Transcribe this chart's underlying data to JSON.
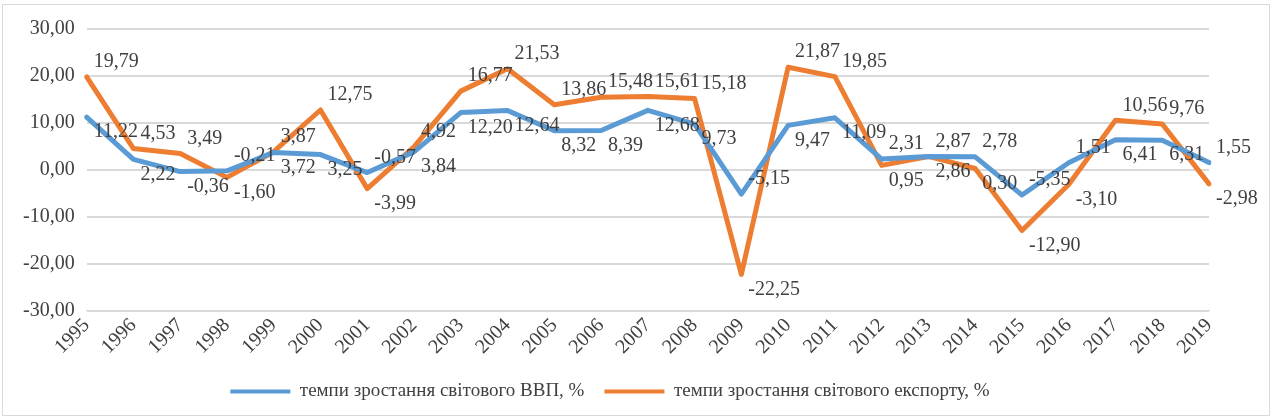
{
  "chart_data": {
    "type": "line",
    "categories": [
      "1995",
      "1996",
      "1997",
      "1998",
      "1999",
      "2000",
      "2001",
      "2002",
      "2003",
      "2004",
      "2005",
      "2006",
      "2007",
      "2008",
      "2009",
      "2010",
      "2011",
      "2012",
      "2013",
      "2014",
      "2015",
      "2016",
      "2017",
      "2018",
      "2019"
    ],
    "series": [
      {
        "name": "темпи зростання світового ВВП, %",
        "color": "#5b9bd5",
        "values": [
          11.22,
          2.22,
          -0.36,
          -0.21,
          3.72,
          3.25,
          -0.57,
          3.84,
          12.2,
          12.64,
          8.32,
          8.39,
          12.68,
          9.73,
          -5.15,
          9.47,
          11.09,
          2.31,
          2.87,
          2.78,
          -5.35,
          1.51,
          6.41,
          6.31,
          1.55
        ],
        "value_labels": [
          "11,22",
          "2,22",
          "-0,36",
          "-0,21",
          "3,72",
          "3,25",
          "-0,57",
          "3,84",
          "12,20",
          "12,64",
          "8,32",
          "8,39",
          "12,68",
          "9,73",
          "-5,15",
          "9,47",
          "11,09",
          "2,31",
          "2,87",
          "2,78",
          "-5,35",
          "1,51",
          "6,41",
          "6,31",
          "1,55"
        ]
      },
      {
        "name": "темпи зростання світового експорту, %",
        "color": "#ed7d31",
        "values": [
          19.79,
          4.53,
          3.49,
          -1.6,
          3.87,
          12.75,
          -3.99,
          4.92,
          16.77,
          21.53,
          13.86,
          15.48,
          15.61,
          15.18,
          -22.25,
          21.87,
          19.85,
          0.95,
          2.86,
          0.3,
          -12.9,
          -3.1,
          10.56,
          9.76,
          -2.98
        ],
        "value_labels": [
          "19,79",
          "4,53",
          "3,49",
          "-1,60",
          "3,87",
          "12,75",
          "-3,99",
          "4,92",
          "16,77",
          "21,53",
          "13,86",
          "15,48",
          "15,61",
          "15,18",
          "-22,25",
          "21,87",
          "19,85",
          "0,95",
          "2,86",
          "0,30",
          "-12,90",
          "-3,10",
          "10,56",
          "9,76",
          "-2,98"
        ]
      }
    ],
    "ylim": [
      -30,
      30
    ],
    "yticks": [
      {
        "value": -30,
        "label": "-30,00"
      },
      {
        "value": -20,
        "label": "-20,00"
      },
      {
        "value": -10,
        "label": "-10,00"
      },
      {
        "value": 0,
        "label": "0,00"
      },
      {
        "value": 10,
        "label": "10,00"
      },
      {
        "value": 20,
        "label": "20,00"
      },
      {
        "value": 30,
        "label": "30,00"
      }
    ],
    "grid": "y",
    "legend": "bottom",
    "marker": "none",
    "line_style": "solid"
  }
}
